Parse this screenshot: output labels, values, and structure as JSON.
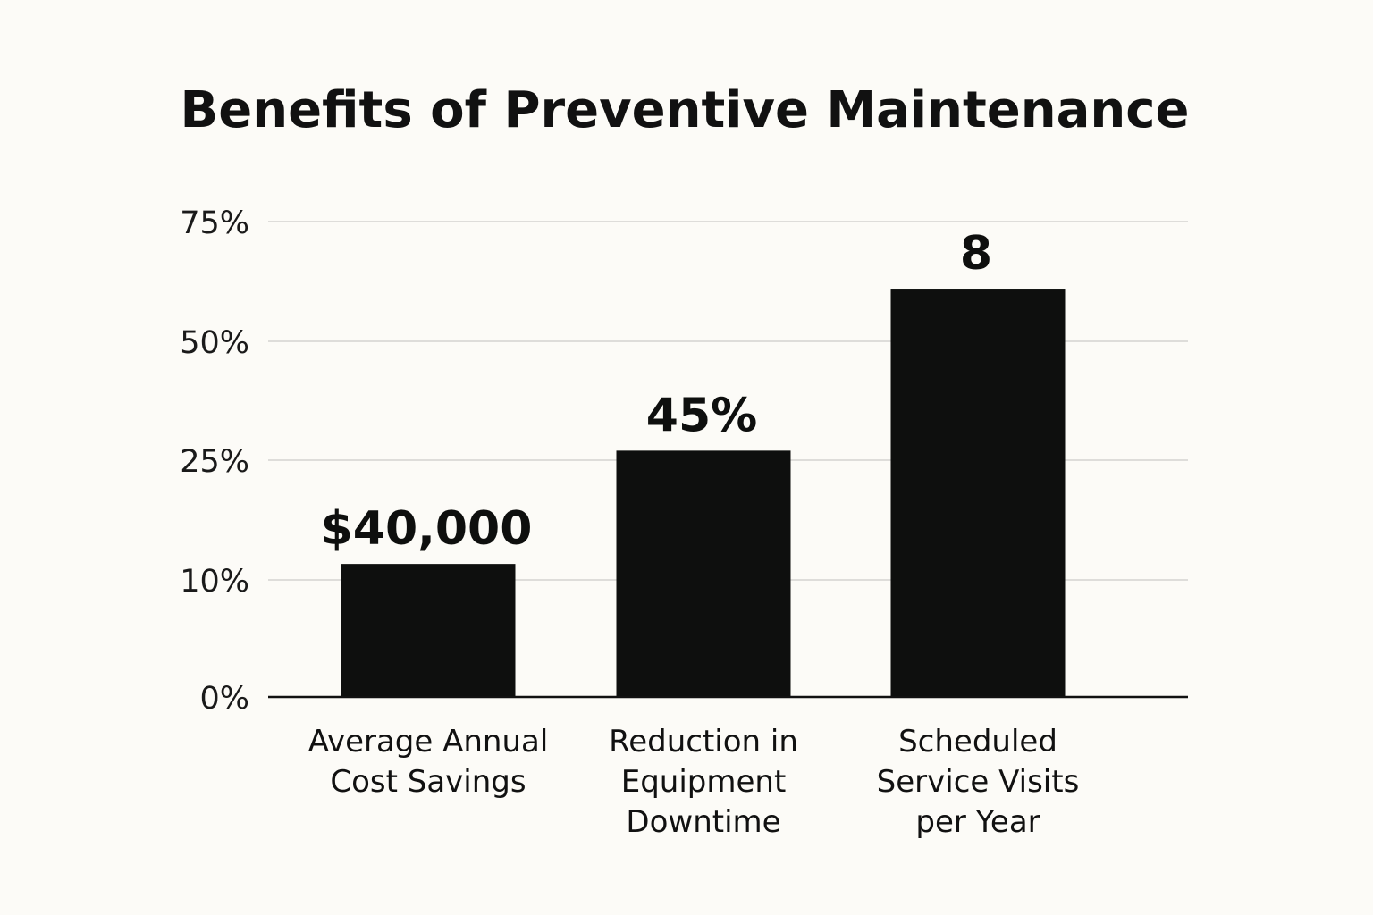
{
  "chart_data": {
    "type": "bar",
    "title": "Benefits of Preventive Maintenance",
    "xlabel": "",
    "ylabel": "",
    "y_ticks": [
      "0%",
      "10%",
      "25%",
      "50%",
      "75%"
    ],
    "categories": [
      [
        "Average Annual",
        "Cost Savings"
      ],
      [
        "Reduction in",
        "Equipment",
        "Downtime"
      ],
      [
        "Scheduled",
        "Service Visits",
        "per Year"
      ]
    ],
    "values": [
      12,
      27,
      61
    ],
    "data_labels": [
      "$40,000",
      "45%",
      "8"
    ],
    "grid": true,
    "colors": {
      "bar": "#0e0f0e",
      "background": "#fcfbf7",
      "grid": "#d3d3d1",
      "text": "#111111"
    }
  }
}
